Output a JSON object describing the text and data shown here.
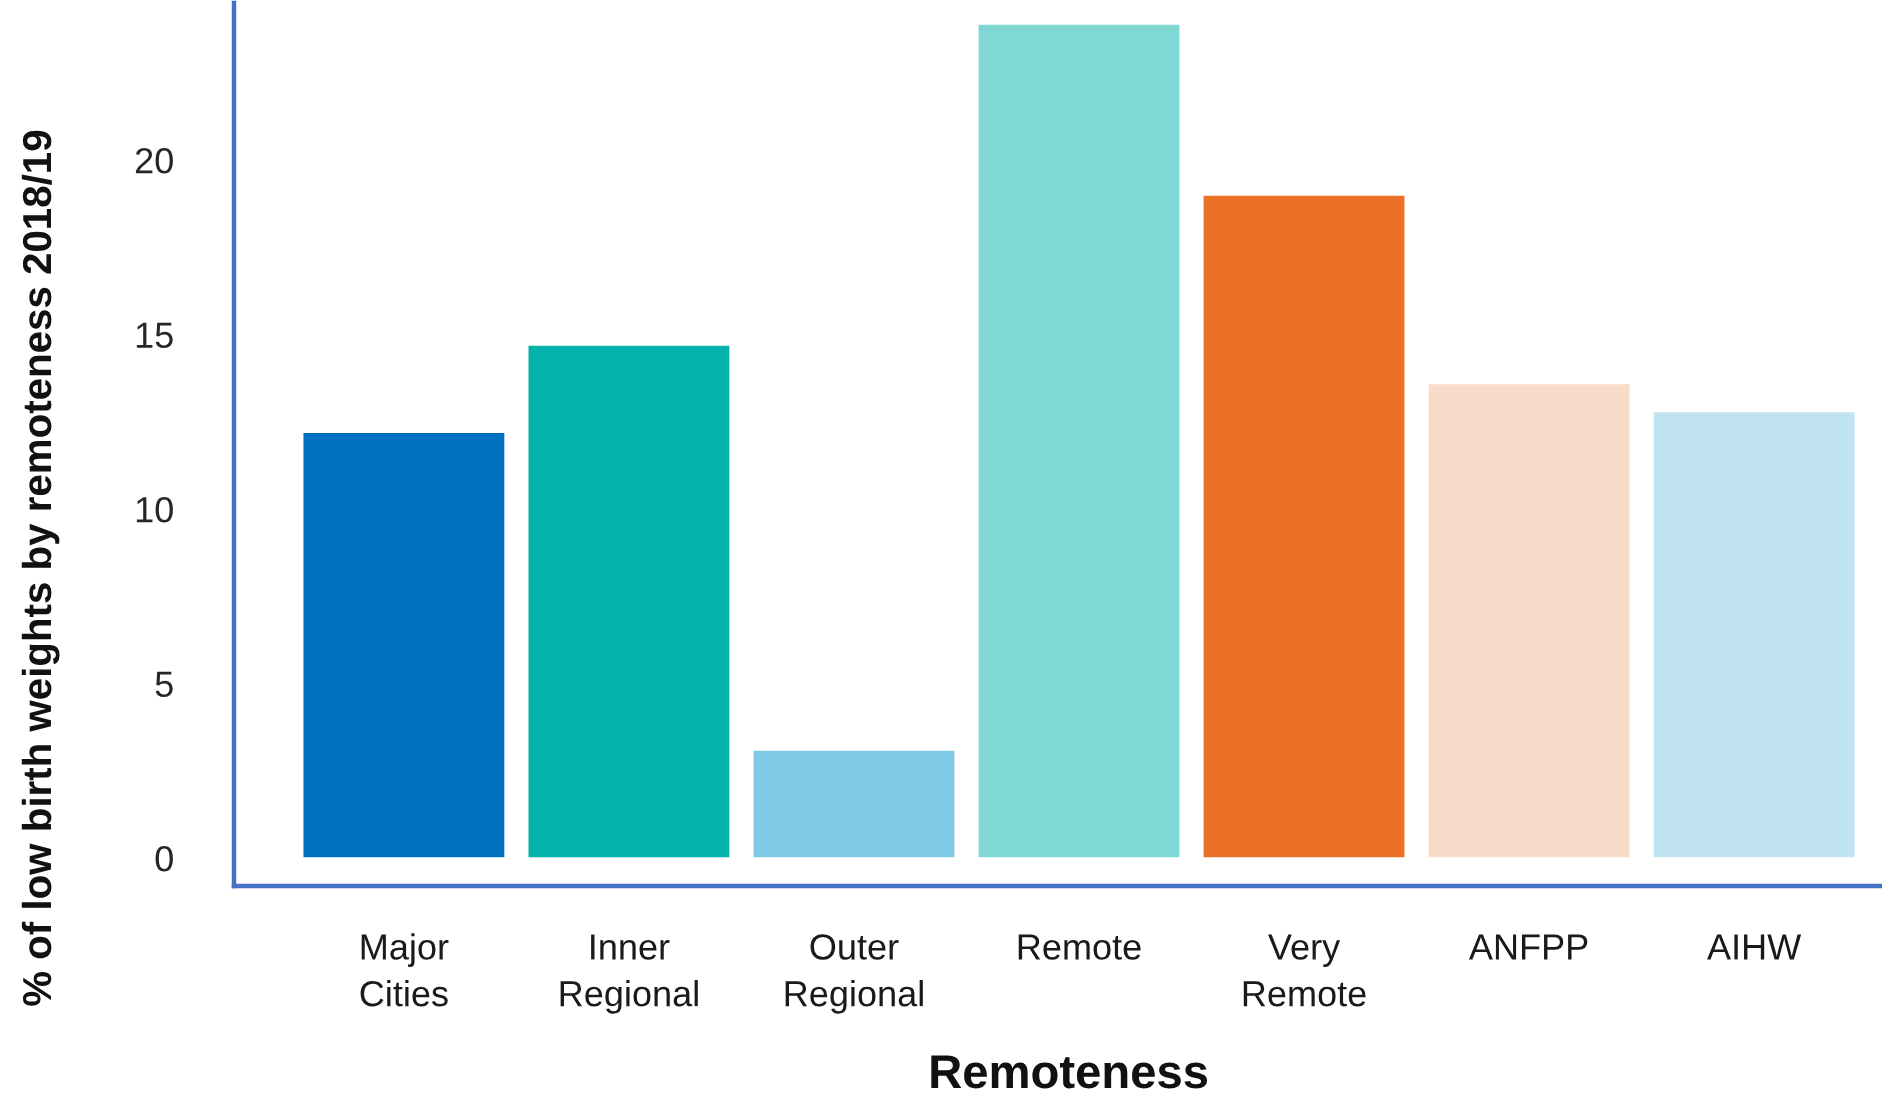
{
  "chart_data": {
    "type": "bar",
    "xlabel": "Remoteness",
    "ylabel": "% of low birth weights by remoteness 2018/19",
    "categories": [
      "Major Cities",
      "Inner Regional",
      "Outer Regional",
      "Remote",
      "Very Remote",
      "ANFPP",
      "AIHW"
    ],
    "values": [
      12.2,
      14.7,
      3.1,
      23.9,
      19.0,
      13.6,
      12.8
    ],
    "colors": [
      "#0070c0",
      "#02b2ab",
      "#7ecae4",
      "#80d8d5",
      "#eb7028",
      "#f8dbc8",
      "#c0e4f2"
    ],
    "ylim": [
      -0.8,
      24.5
    ],
    "yticks": [
      0,
      5,
      10,
      15,
      20
    ]
  }
}
